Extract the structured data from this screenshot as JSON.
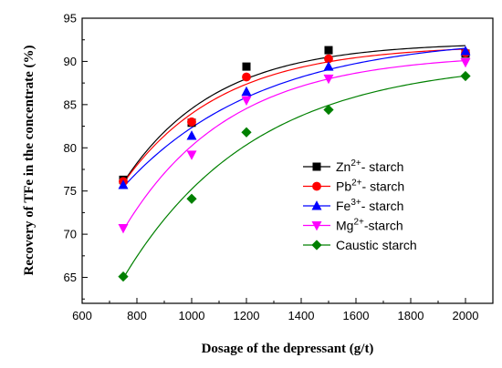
{
  "chart_data": {
    "type": "line",
    "xlabel": "Dosage of the depressant (g/t)",
    "ylabel": "Recovery of TFe  in the concentrate (%)",
    "xlim": [
      600,
      2100
    ],
    "ylim": [
      62,
      95
    ],
    "xticks": [
      600,
      800,
      1000,
      1200,
      1400,
      1600,
      1800,
      2000
    ],
    "yticks": [
      65,
      70,
      75,
      80,
      85,
      90,
      95
    ],
    "grid": false,
    "legend_position": "right",
    "x": [
      750,
      1000,
      1200,
      1500,
      2000
    ],
    "series": [
      {
        "name_main": "Zn",
        "name_sup": "2+",
        "name_rest": "- starch",
        "marker": "square",
        "color": "#000000",
        "values": [
          76.3,
          82.9,
          89.4,
          91.3,
          90.9
        ]
      },
      {
        "name_main": "Pb",
        "name_sup": "2+",
        "name_rest": "- starch",
        "marker": "circle",
        "color": "#ff0000",
        "values": [
          76.1,
          83.0,
          88.2,
          90.3,
          91.0
        ]
      },
      {
        "name_main": "Fe",
        "name_sup": "3+",
        "name_rest": "- starch",
        "marker": "triangle-up",
        "color": "#0000ff",
        "values": [
          75.7,
          81.4,
          86.5,
          89.4,
          91.2
        ]
      },
      {
        "name_main": "Mg",
        "name_sup": "2+",
        "name_rest": "-starch",
        "marker": "triangle-down",
        "color": "#ff00ff",
        "values": [
          70.7,
          79.2,
          85.5,
          88.0,
          89.9
        ]
      },
      {
        "name_main": "Caustic starch",
        "name_sup": "",
        "name_rest": "",
        "marker": "diamond",
        "color": "#008000",
        "values": [
          65.1,
          74.1,
          81.8,
          84.4,
          88.3
        ]
      }
    ]
  }
}
